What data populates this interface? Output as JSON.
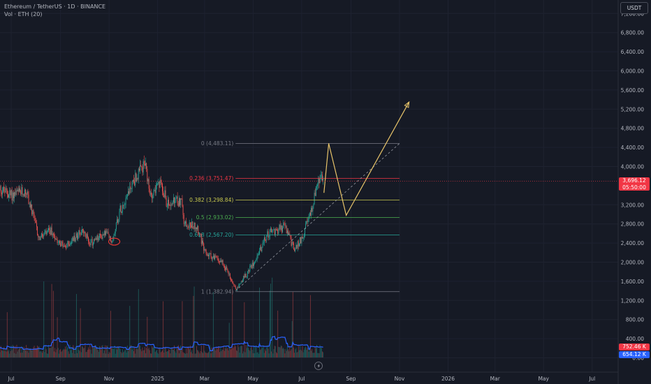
{
  "header": {
    "title": "Ethereum / TetherUS · 1D · BINANCE",
    "volume_label": "Vol · ETH (20)"
  },
  "currency_button": "USDT",
  "price_badge": {
    "price": "3,696.12",
    "countdown": "05:50:00"
  },
  "volume_badges": {
    "volume": "752.46 K",
    "volume_ma": "654.12 K"
  },
  "colors": {
    "background": "#161a25",
    "up": "#26a69a",
    "down": "#ef5350",
    "projection": "#e8c46a",
    "ma": "#2962ff"
  },
  "chart_data": {
    "type": "candlestick",
    "symbol": "ETHUSDT",
    "interval": "1D",
    "y_axis": {
      "range": [
        0,
        7600
      ],
      "ticks": [
        {
          "value": 0,
          "label": "0.00"
        },
        {
          "value": 400,
          "label": "400.00"
        },
        {
          "value": 800,
          "label": "800.00"
        },
        {
          "value": 1200,
          "label": "1,200.00"
        },
        {
          "value": 1600,
          "label": "1,600.00"
        },
        {
          "value": 2000,
          "label": "2,000.00"
        },
        {
          "value": 2400,
          "label": "2,400.00"
        },
        {
          "value": 2800,
          "label": "2,800.00"
        },
        {
          "value": 3200,
          "label": "3,200.00"
        },
        {
          "value": 4000,
          "label": "4,000.00"
        },
        {
          "value": 4400,
          "label": "4,400.00"
        },
        {
          "value": 4800,
          "label": "4,800.00"
        },
        {
          "value": 5200,
          "label": "5,200.00"
        },
        {
          "value": 5600,
          "label": "5,600.00"
        },
        {
          "value": 6000,
          "label": "6,000.00"
        },
        {
          "value": 6400,
          "label": "6,400.00"
        },
        {
          "value": 6800,
          "label": "6,800.00"
        },
        {
          "value": 7200,
          "label": "7,200.00"
        }
      ]
    },
    "x_axis": {
      "ticks": [
        {
          "date": "2024-07-01",
          "label": "Jul"
        },
        {
          "date": "2024-09-01",
          "label": "Sep"
        },
        {
          "date": "2024-11-01",
          "label": "Nov"
        },
        {
          "date": "2025-01-01",
          "label": "2025"
        },
        {
          "date": "2025-03-01",
          "label": "Mar"
        },
        {
          "date": "2025-05-01",
          "label": "May"
        },
        {
          "date": "2025-07-01",
          "label": "Jul"
        },
        {
          "date": "2025-09-01",
          "label": "Sep"
        },
        {
          "date": "2025-11-01",
          "label": "Nov"
        },
        {
          "date": "2026-01-01",
          "label": "2026"
        },
        {
          "date": "2026-03-01",
          "label": "Mar"
        },
        {
          "date": "2026-05-01",
          "label": "May"
        },
        {
          "date": "2026-07-01",
          "label": "Jul"
        }
      ]
    },
    "price_path": [
      {
        "date": "2024-06-15",
        "close": 3550
      },
      {
        "date": "2024-07-01",
        "close": 3400
      },
      {
        "date": "2024-07-20",
        "close": 3480
      },
      {
        "date": "2024-08-05",
        "close": 2500
      },
      {
        "date": "2024-08-20",
        "close": 2650
      },
      {
        "date": "2024-09-06",
        "close": 2300
      },
      {
        "date": "2024-09-27",
        "close": 2650
      },
      {
        "date": "2024-10-10",
        "close": 2400
      },
      {
        "date": "2024-10-28",
        "close": 2620
      },
      {
        "date": "2024-11-04",
        "close": 2430
      },
      {
        "date": "2024-11-15",
        "close": 3100
      },
      {
        "date": "2024-11-30",
        "close": 3650
      },
      {
        "date": "2024-12-16",
        "close": 4050
      },
      {
        "date": "2024-12-22",
        "close": 3400
      },
      {
        "date": "2025-01-06",
        "close": 3650
      },
      {
        "date": "2025-01-13",
        "close": 3200
      },
      {
        "date": "2025-01-31",
        "close": 3300
      },
      {
        "date": "2025-02-03",
        "close": 2800
      },
      {
        "date": "2025-02-20",
        "close": 2750
      },
      {
        "date": "2025-03-01",
        "close": 2200
      },
      {
        "date": "2025-03-24",
        "close": 2000
      },
      {
        "date": "2025-04-09",
        "close": 1450
      },
      {
        "date": "2025-04-25",
        "close": 1800
      },
      {
        "date": "2025-05-08",
        "close": 2200
      },
      {
        "date": "2025-05-20",
        "close": 2600
      },
      {
        "date": "2025-06-10",
        "close": 2750
      },
      {
        "date": "2025-06-22",
        "close": 2250
      },
      {
        "date": "2025-07-01",
        "close": 2500
      },
      {
        "date": "2025-07-12",
        "close": 3000
      },
      {
        "date": "2025-07-20",
        "close": 3600
      },
      {
        "date": "2025-07-25",
        "close": 3750
      },
      {
        "date": "2025-07-29",
        "close": 3696
      }
    ],
    "volume": {
      "range": [
        0,
        4000
      ],
      "note_ticks_shown_in_volume_pane": [
        "0.00",
        "400.00",
        "800.00"
      ]
    },
    "fibonacci": {
      "start_date": "2025-04-09",
      "end_date": "2025-11-01",
      "levels": [
        {
          "ratio": "0",
          "price": 4483.11,
          "label": "0 (4,483.11)",
          "color": "#787b86"
        },
        {
          "ratio": "0.236",
          "price": 3751.47,
          "label": "0.236 (3,751.47)",
          "color": "#f23645"
        },
        {
          "ratio": "0.382",
          "price": 3298.84,
          "label": "0.382 (3,298.84)",
          "color": "#c8c84e"
        },
        {
          "ratio": "0.5",
          "price": 2933.02,
          "label": "0.5 (2,933.02)",
          "color": "#4caf50"
        },
        {
          "ratio": "0.618",
          "price": 2567.2,
          "label": "0.618 (2,567.20)",
          "color": "#26a69a"
        },
        {
          "ratio": "1",
          "price": 1382.94,
          "label": "1 (1,382.94)",
          "color": "#787b86"
        }
      ]
    },
    "projection": {
      "points": [
        {
          "date": "2025-07-29",
          "price": 3450
        },
        {
          "date": "2025-08-04",
          "price": 4483
        },
        {
          "date": "2025-08-26",
          "price": 2980
        },
        {
          "date": "2025-11-13",
          "price": 5350
        }
      ]
    },
    "trendline": {
      "from": {
        "date": "2025-04-09",
        "price": 1400
      },
      "to": {
        "date": "2025-11-01",
        "price": 4483
      }
    },
    "current_price_line": 3696.12,
    "highlight_circle": {
      "date": "2024-11-04",
      "price": 2430
    }
  }
}
